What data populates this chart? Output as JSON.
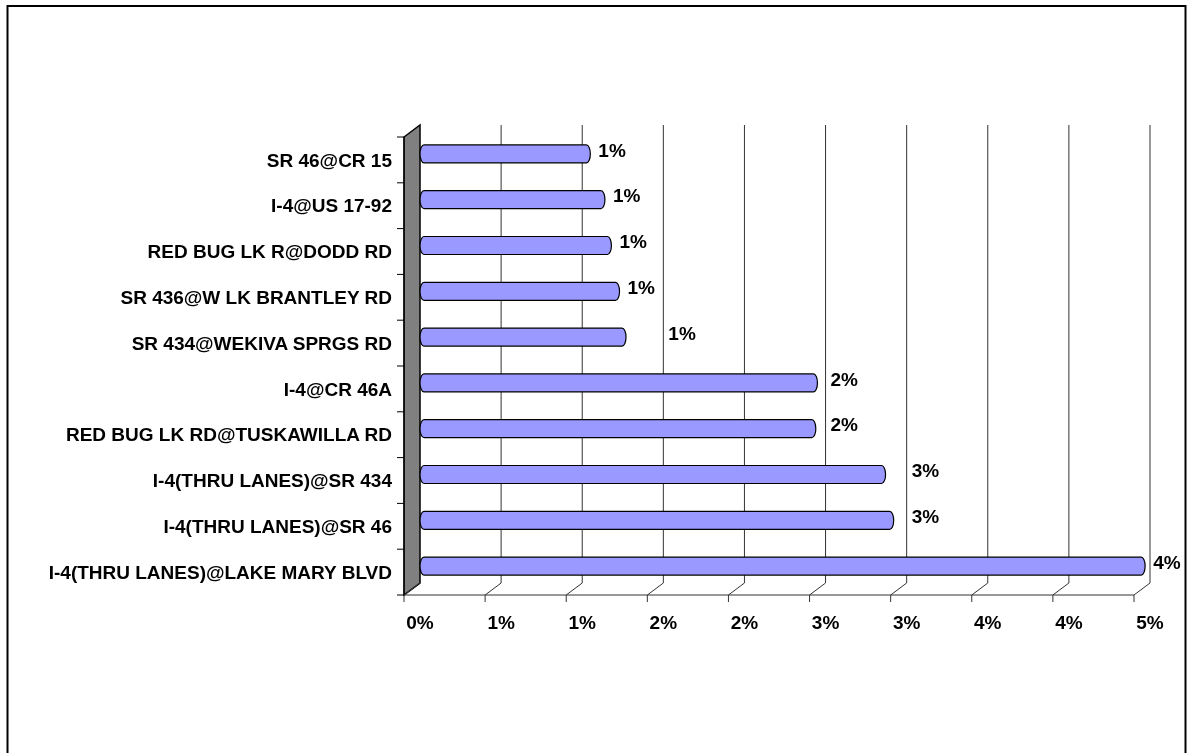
{
  "chart_data": {
    "type": "bar",
    "orientation": "horizontal",
    "categories": [
      "SR 46@CR 15",
      "I-4@US 17-92",
      "RED BUG LK R@DODD RD",
      "SR 436@W LK BRANTLEY RD",
      "SR 434@WEKIVA SPRGS RD",
      "I-4@CR 46A",
      "RED BUG LK RD@TUSKAWILLA RD",
      "I-4(THRU LANES)@SR 434",
      "I-4(THRU LANES)@SR 46",
      "I-4(THRU LANES)@LAKE MARY BLVD"
    ],
    "values": [
      1.05,
      1.14,
      1.18,
      1.23,
      1.27,
      2.45,
      2.44,
      2.87,
      2.92,
      4.47
    ],
    "color": "#9999ff",
    "value_labels": [
      "1%",
      "1%",
      "1%",
      "1%",
      "1%",
      "2%",
      "2%",
      "3%",
      "3%",
      "4%"
    ],
    "xlim": [
      0,
      4.5
    ],
    "xticks": [
      {
        "value": 0,
        "label": "0%"
      },
      {
        "value": 0.5,
        "label": "1%"
      },
      {
        "value": 1,
        "label": "1%"
      },
      {
        "value": 1.5,
        "label": "2%"
      },
      {
        "value": 2,
        "label": "2%"
      },
      {
        "value": 2.5,
        "label": "3%"
      },
      {
        "value": 3,
        "label": "3%"
      },
      {
        "value": 3.5,
        "label": "4%"
      },
      {
        "value": 4,
        "label": "4%"
      },
      {
        "value": 4.5,
        "label": "5%"
      }
    ],
    "grid": "x"
  }
}
